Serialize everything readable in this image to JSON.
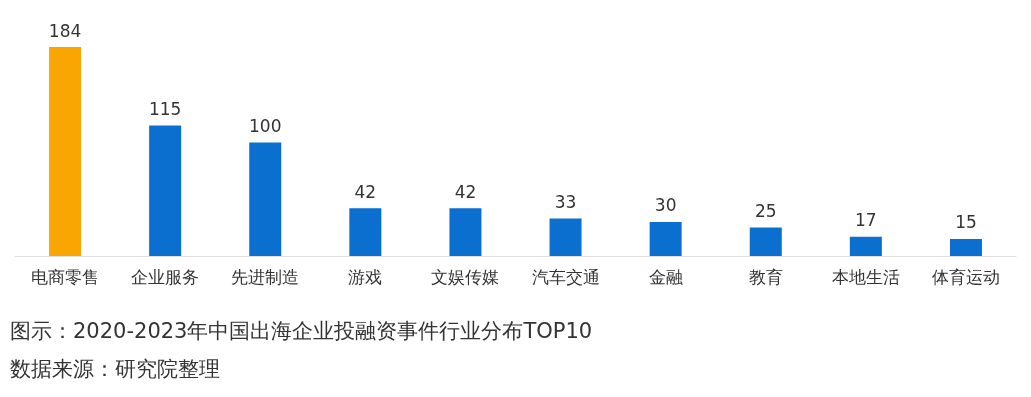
{
  "chart_data": {
    "type": "bar",
    "categories": [
      "电商零售",
      "企业服务",
      "先进制造",
      "游戏",
      "文娱传媒",
      "汽车交通",
      "金融",
      "教育",
      "本地生活",
      "体育运动"
    ],
    "values": [
      184,
      115,
      100,
      42,
      42,
      33,
      30,
      25,
      17,
      15
    ],
    "colors": [
      "#f9a602",
      "#0a6fcf",
      "#0a6fcf",
      "#0a6fcf",
      "#0a6fcf",
      "#0a6fcf",
      "#0a6fcf",
      "#0a6fcf",
      "#0a6fcf",
      "#0a6fcf"
    ],
    "data_labels": true,
    "annotations": [
      "图示：2020-2023年中国出海企业投融资事件行业分布TOP10",
      "数据来源：研究院整理"
    ]
  }
}
